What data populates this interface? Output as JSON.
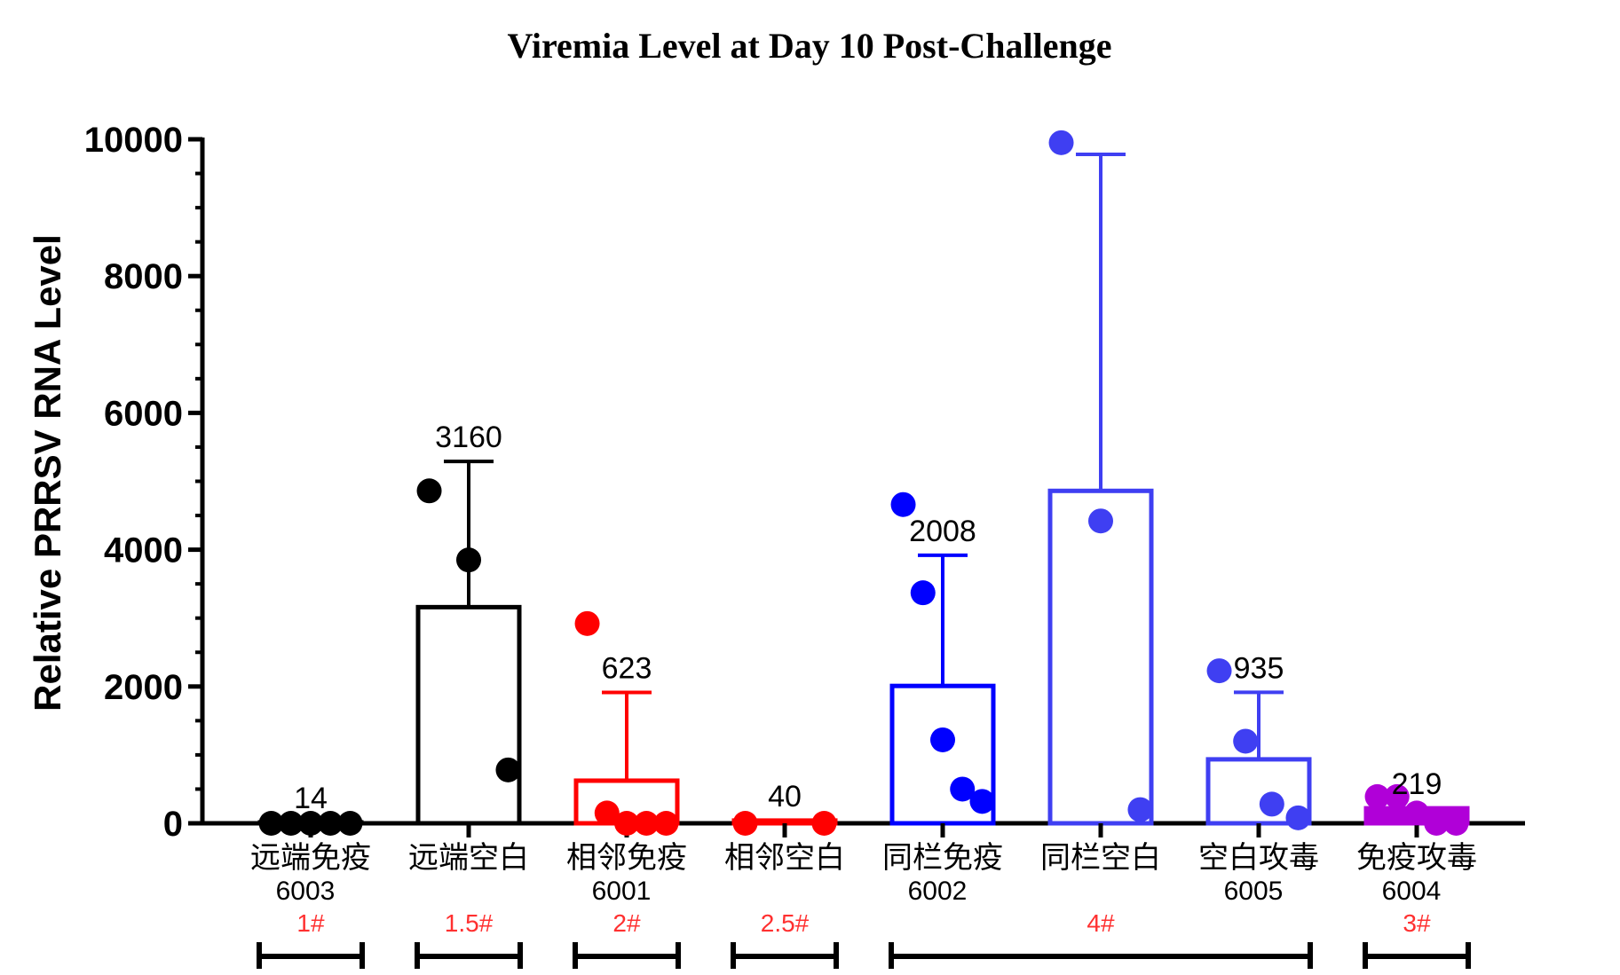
{
  "chart_data": {
    "type": "bar",
    "title": "Viremia Level at Day 10 Post-Challenge",
    "xlabel": "",
    "ylabel": "Relative PRRSV RNA Level",
    "ylim": [
      0,
      10000
    ],
    "yticks": [
      "0",
      "2000",
      "4000",
      "6000",
      "8000",
      "10000"
    ],
    "grid": false,
    "legend": "none",
    "categories": [
      {
        "name": "远端免疫",
        "code": "6003",
        "mean": 14,
        "label": "14",
        "error": 0,
        "points": [
          0,
          0,
          0,
          0,
          0
        ],
        "color": "#000000",
        "fill": false
      },
      {
        "name": "远端空白",
        "code": "",
        "mean": 3160,
        "label": "3160",
        "error": 2130,
        "points": [
          4860,
          3850,
          780
        ],
        "color": "#000000",
        "fill": false
      },
      {
        "name": "相邻免疫",
        "code": "6001",
        "mean": 623,
        "label": "623",
        "error": 1290,
        "points": [
          2920,
          150,
          0,
          0,
          0
        ],
        "color": "#ff0000",
        "fill": false
      },
      {
        "name": "相邻空白",
        "code": "",
        "mean": 40,
        "label": "40",
        "error": 0,
        "points": [
          0,
          0
        ],
        "color": "#ff0000",
        "fill": false
      },
      {
        "name": "同栏免疫",
        "code": "6002",
        "mean": 2008,
        "label": "2008",
        "error": 1910,
        "points": [
          4660,
          3370,
          1220,
          500,
          320
        ],
        "color": "#0000ff",
        "fill": false
      },
      {
        "name": "同栏空白",
        "code": "",
        "mean": 4860,
        "label": "",
        "error": 4920,
        "points": [
          9950,
          4420,
          200
        ],
        "color": "#3f3ff2",
        "fill": false
      },
      {
        "name": "空白攻毒",
        "code": "6005",
        "mean": 935,
        "label": "935",
        "error": 980,
        "points": [
          2230,
          1200,
          280,
          80
        ],
        "color": "#3f3ff2",
        "fill": false
      },
      {
        "name": "免疫攻毒",
        "code": "6004",
        "mean": 219,
        "label": "219",
        "error": 0,
        "points": [
          390,
          390,
          150,
          0,
          0
        ],
        "color": "#b000d8",
        "fill": true
      }
    ],
    "groups": [
      {
        "tag": "1#",
        "from": 0,
        "to": 0
      },
      {
        "tag": "1.5#",
        "from": 1,
        "to": 1
      },
      {
        "tag": "2#",
        "from": 2,
        "to": 2
      },
      {
        "tag": "2.5#",
        "from": 3,
        "to": 3
      },
      {
        "tag": "4#",
        "from": 4,
        "to": 6
      },
      {
        "tag": "3#",
        "from": 7,
        "to": 7
      }
    ]
  }
}
